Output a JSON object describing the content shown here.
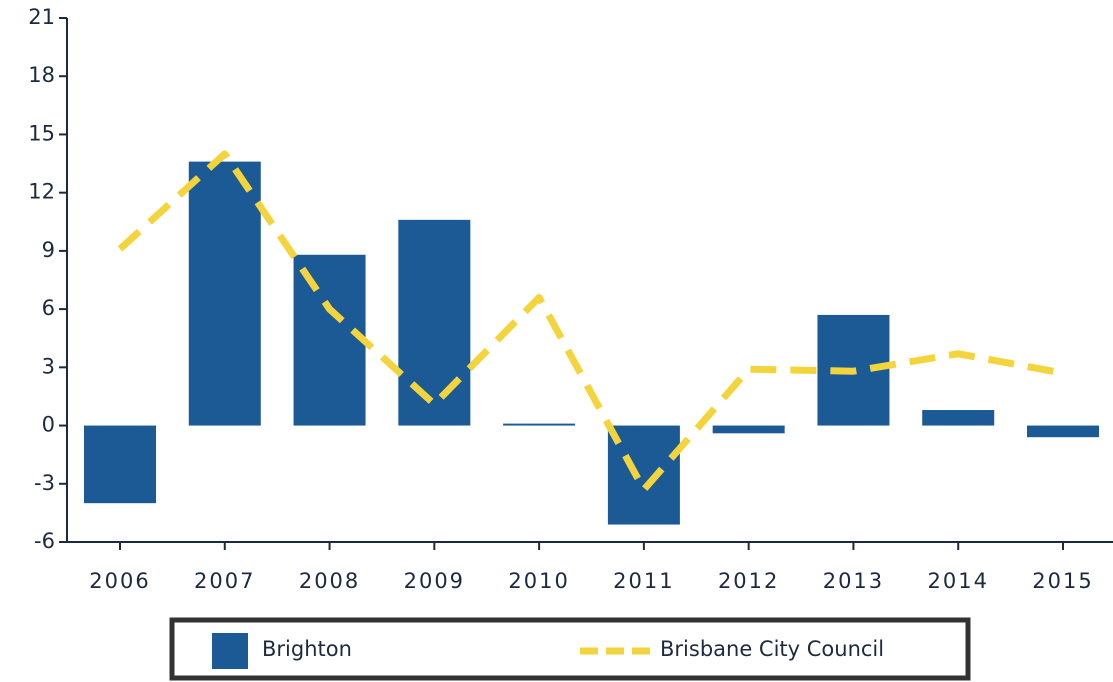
{
  "chart_data": {
    "type": "bar_line",
    "categories": [
      "2006",
      "2007",
      "2008",
      "2009",
      "2010",
      "2011",
      "2012",
      "2013",
      "2014",
      "2015"
    ],
    "series": [
      {
        "name": "Brighton",
        "type": "bar",
        "color": "#1b5a95",
        "values": [
          -4.0,
          13.6,
          8.8,
          10.6,
          0.1,
          -5.1,
          -0.4,
          5.7,
          0.8,
          -0.6
        ]
      },
      {
        "name": "Brisbane City Council",
        "type": "line",
        "color": "#f4d43c",
        "dashed": true,
        "values": [
          9.1,
          14.0,
          6.0,
          1.1,
          6.6,
          -3.3,
          2.9,
          2.8,
          3.7,
          2.7
        ]
      }
    ],
    "ylim": [
      -6,
      21
    ],
    "yticks": [
      -6,
      -3,
      0,
      3,
      6,
      9,
      12,
      15,
      18,
      21
    ],
    "grid": false,
    "legend": "bottom"
  }
}
